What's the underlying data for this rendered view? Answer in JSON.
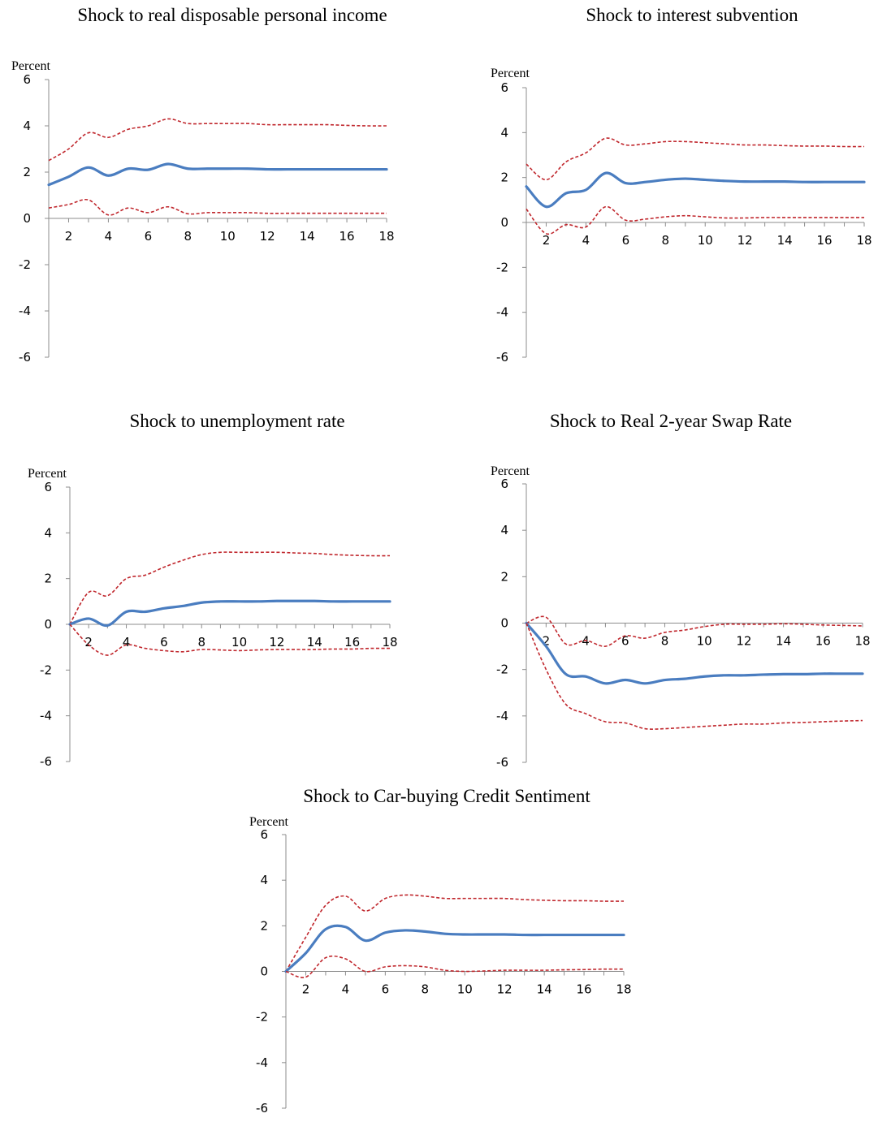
{
  "chart_data": [
    {
      "type": "line",
      "title": "Shock to real disposable personal income",
      "ylabel": "Percent",
      "ylim": [
        -6,
        6
      ],
      "xlim": [
        1,
        18
      ],
      "x_ticks": [
        2,
        4,
        6,
        8,
        10,
        12,
        14,
        16,
        18
      ],
      "y_ticks": [
        6,
        4,
        2,
        0,
        -2,
        -4,
        -6
      ],
      "x": [
        1,
        2,
        3,
        4,
        5,
        6,
        7,
        8,
        9,
        10,
        11,
        12,
        13,
        14,
        15,
        16,
        17,
        18
      ],
      "series": [
        {
          "role": "upper",
          "values": [
            2.5,
            3.0,
            3.7,
            3.5,
            3.85,
            4.0,
            4.3,
            4.1,
            4.1,
            4.1,
            4.1,
            4.05,
            4.05,
            4.05,
            4.05,
            4.02,
            4.0,
            4.0
          ]
        },
        {
          "role": "estimate",
          "values": [
            1.45,
            1.8,
            2.2,
            1.85,
            2.15,
            2.1,
            2.35,
            2.15,
            2.15,
            2.15,
            2.15,
            2.12,
            2.12,
            2.12,
            2.12,
            2.12,
            2.12,
            2.12
          ]
        },
        {
          "role": "lower",
          "values": [
            0.45,
            0.6,
            0.8,
            0.15,
            0.45,
            0.25,
            0.5,
            0.2,
            0.25,
            0.25,
            0.25,
            0.22,
            0.22,
            0.22,
            0.22,
            0.22,
            0.22,
            0.22
          ]
        }
      ],
      "grid": false
    },
    {
      "type": "line",
      "title": "Shock to interest subvention",
      "ylabel": "Percent",
      "ylim": [
        -6,
        6
      ],
      "xlim": [
        1,
        18
      ],
      "x_ticks": [
        2,
        4,
        6,
        8,
        10,
        12,
        14,
        16,
        18
      ],
      "y_ticks": [
        6,
        4,
        2,
        0,
        -2,
        -4,
        -6
      ],
      "x": [
        1,
        2,
        3,
        4,
        5,
        6,
        7,
        8,
        9,
        10,
        11,
        12,
        13,
        14,
        15,
        16,
        17,
        18
      ],
      "series": [
        {
          "role": "upper",
          "values": [
            2.6,
            1.9,
            2.7,
            3.1,
            3.75,
            3.45,
            3.5,
            3.6,
            3.6,
            3.55,
            3.5,
            3.45,
            3.45,
            3.42,
            3.4,
            3.4,
            3.38,
            3.38
          ]
        },
        {
          "role": "estimate",
          "values": [
            1.6,
            0.7,
            1.3,
            1.45,
            2.2,
            1.75,
            1.8,
            1.9,
            1.95,
            1.9,
            1.85,
            1.82,
            1.82,
            1.82,
            1.8,
            1.8,
            1.8,
            1.8
          ]
        },
        {
          "role": "lower",
          "values": [
            0.6,
            -0.5,
            -0.1,
            -0.2,
            0.7,
            0.1,
            0.15,
            0.25,
            0.3,
            0.25,
            0.2,
            0.2,
            0.22,
            0.22,
            0.22,
            0.22,
            0.22,
            0.22
          ]
        }
      ],
      "grid": false
    },
    {
      "type": "line",
      "title": "Shock to unemployment rate",
      "ylabel": "Percent",
      "ylim": [
        -6,
        6
      ],
      "xlim": [
        1,
        18
      ],
      "x_ticks": [
        2,
        4,
        6,
        8,
        10,
        12,
        14,
        16,
        18
      ],
      "y_ticks": [
        6,
        4,
        2,
        0,
        -2,
        -4,
        -6
      ],
      "x": [
        1,
        2,
        3,
        4,
        5,
        6,
        7,
        8,
        9,
        10,
        11,
        12,
        13,
        14,
        15,
        16,
        17,
        18
      ],
      "series": [
        {
          "role": "upper",
          "values": [
            0,
            1.4,
            1.25,
            2.0,
            2.15,
            2.5,
            2.8,
            3.05,
            3.15,
            3.15,
            3.15,
            3.15,
            3.12,
            3.1,
            3.05,
            3.02,
            3.0,
            3.0
          ]
        },
        {
          "role": "estimate",
          "values": [
            0,
            0.25,
            -0.05,
            0.55,
            0.55,
            0.7,
            0.8,
            0.95,
            1.0,
            1.0,
            1.0,
            1.02,
            1.02,
            1.02,
            1.0,
            1.0,
            1.0,
            1.0
          ]
        },
        {
          "role": "lower",
          "values": [
            0,
            -0.9,
            -1.35,
            -0.9,
            -1.05,
            -1.15,
            -1.2,
            -1.1,
            -1.12,
            -1.15,
            -1.12,
            -1.1,
            -1.1,
            -1.1,
            -1.08,
            -1.08,
            -1.05,
            -1.05
          ]
        }
      ],
      "grid": false
    },
    {
      "type": "line",
      "title": "Shock to Real 2-year Swap Rate",
      "ylabel": "Percent",
      "ylim": [
        -6,
        6
      ],
      "xlim": [
        1,
        18
      ],
      "x_ticks": [
        2,
        4,
        6,
        8,
        10,
        12,
        14,
        16,
        18
      ],
      "y_ticks": [
        6,
        4,
        2,
        0,
        -2,
        -4,
        -6
      ],
      "x": [
        1,
        2,
        3,
        4,
        5,
        6,
        7,
        8,
        9,
        10,
        11,
        12,
        13,
        14,
        15,
        16,
        17,
        18
      ],
      "series": [
        {
          "role": "upper",
          "values": [
            0,
            0.25,
            -0.9,
            -0.75,
            -1.0,
            -0.55,
            -0.65,
            -0.4,
            -0.3,
            -0.15,
            -0.05,
            -0.05,
            -0.05,
            -0.03,
            -0.05,
            -0.08,
            -0.1,
            -0.12
          ]
        },
        {
          "role": "estimate",
          "values": [
            0,
            -1.0,
            -2.2,
            -2.3,
            -2.6,
            -2.45,
            -2.6,
            -2.45,
            -2.4,
            -2.3,
            -2.25,
            -2.25,
            -2.22,
            -2.2,
            -2.2,
            -2.18,
            -2.18,
            -2.18
          ]
        },
        {
          "role": "lower",
          "values": [
            0,
            -2.0,
            -3.5,
            -3.9,
            -4.25,
            -4.3,
            -4.55,
            -4.55,
            -4.5,
            -4.45,
            -4.4,
            -4.35,
            -4.35,
            -4.3,
            -4.28,
            -4.25,
            -4.22,
            -4.2
          ]
        }
      ],
      "grid": false
    },
    {
      "type": "line",
      "title": "Shock to Car-buying Credit Sentiment",
      "ylabel": "Percent",
      "ylim": [
        -6,
        6
      ],
      "xlim": [
        1,
        18
      ],
      "x_ticks": [
        2,
        4,
        6,
        8,
        10,
        12,
        14,
        16,
        18
      ],
      "y_ticks": [
        6,
        4,
        2,
        0,
        -2,
        -4,
        -6
      ],
      "x": [
        1,
        2,
        3,
        4,
        5,
        6,
        7,
        8,
        9,
        10,
        11,
        12,
        13,
        14,
        15,
        16,
        17,
        18
      ],
      "series": [
        {
          "role": "upper",
          "values": [
            0,
            1.5,
            2.9,
            3.3,
            2.65,
            3.2,
            3.35,
            3.3,
            3.2,
            3.2,
            3.2,
            3.2,
            3.15,
            3.12,
            3.1,
            3.1,
            3.08,
            3.08
          ]
        },
        {
          "role": "estimate",
          "values": [
            0,
            0.8,
            1.85,
            1.95,
            1.35,
            1.7,
            1.8,
            1.75,
            1.65,
            1.62,
            1.62,
            1.62,
            1.6,
            1.6,
            1.6,
            1.6,
            1.6,
            1.6
          ]
        },
        {
          "role": "lower",
          "values": [
            0,
            -0.25,
            0.6,
            0.55,
            0.0,
            0.2,
            0.25,
            0.2,
            0.05,
            0.0,
            0.02,
            0.05,
            0.05,
            0.05,
            0.07,
            0.08,
            0.1,
            0.1
          ]
        }
      ],
      "grid": false
    }
  ]
}
